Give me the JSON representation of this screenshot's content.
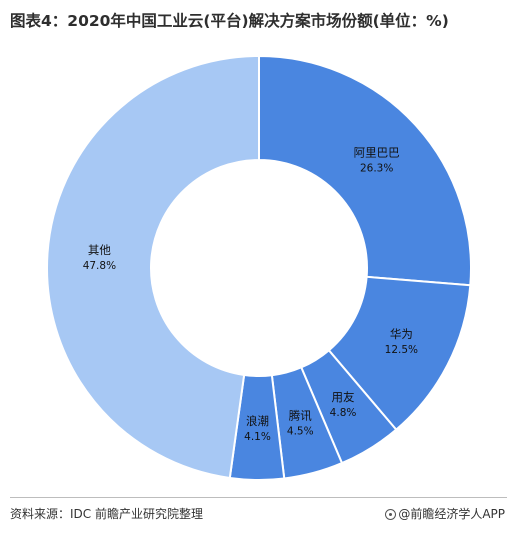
{
  "title": "图表4：2020年中国工业云(平台)解决方案市场份额(单位：%)",
  "source": "资料来源：IDC 前瞻产业研究院整理",
  "brand": "@前瞻经济学人APP",
  "colors": {
    "dark": "#4A86E0",
    "light": "#9DC0F4",
    "other": "#A7C8F4"
  },
  "chart_data": {
    "type": "pie",
    "title": "图表4：2020年中国工业云(平台)解决方案市场份额(单位：%)",
    "donut": true,
    "slices": [
      {
        "label": "阿里巴巴",
        "value": 26.3,
        "value_label": "26.3%",
        "color": "#4A86E0"
      },
      {
        "label": "华为",
        "value": 12.5,
        "value_label": "12.5%",
        "color": "#4A86E0"
      },
      {
        "label": "用友",
        "value": 4.8,
        "value_label": "4.8%",
        "color": "#4A86E0"
      },
      {
        "label": "腾讯",
        "value": 4.5,
        "value_label": "4.5%",
        "color": "#4A86E0"
      },
      {
        "label": "浪潮",
        "value": 4.1,
        "value_label": "4.1%",
        "color": "#4A86E0"
      },
      {
        "label": "其他",
        "value": 47.8,
        "value_label": "47.8%",
        "color": "#A7C8F4"
      }
    ]
  }
}
